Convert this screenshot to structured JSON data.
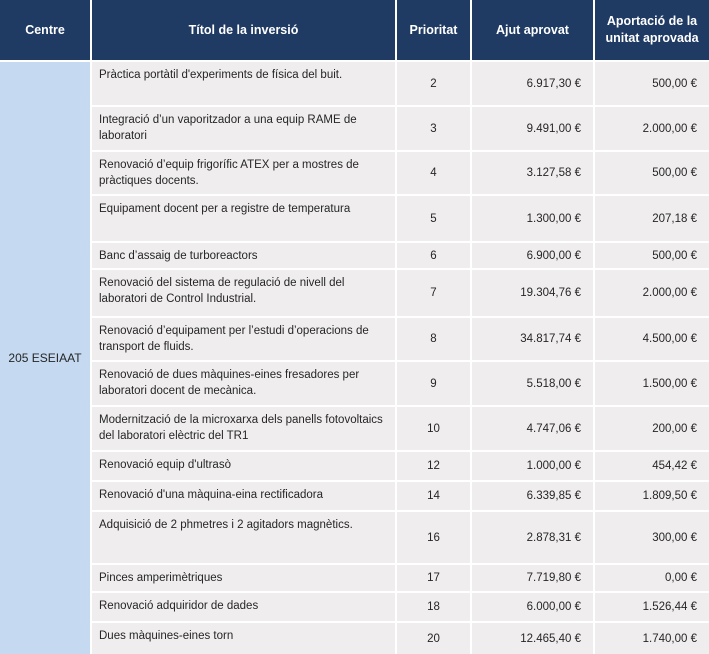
{
  "table": {
    "headers": {
      "centre": "Centre",
      "title": "Títol de la inversió",
      "priority": "Prioritat",
      "grant": "Ajut aprovat",
      "contribution": "Aportació de la unitat aprovada"
    },
    "centre_label": "205 ESEIAAT",
    "rows": [
      {
        "title": "Pràctica portàtil d'experiments de física del buit.",
        "priority": "2",
        "grant": "6.917,30 €",
        "contribution": "500,00 €"
      },
      {
        "title": "Integració d’un vaporitzador a una equip RAME de laboratori",
        "priority": "3",
        "grant": "9.491,00 €",
        "contribution": "2.000,00 €"
      },
      {
        "title": "Renovació d’equip frigorífic ATEX per a mostres de pràctiques docents.",
        "priority": "4",
        "grant": "3.127,58 €",
        "contribution": "500,00 €"
      },
      {
        "title": "Equipament docent per a registre de temperatura",
        "priority": "5",
        "grant": "1.300,00 €",
        "contribution": "207,18 €"
      },
      {
        "title": "Banc d’assaig de turboreactors",
        "priority": "6",
        "grant": "6.900,00 €",
        "contribution": "500,00 €"
      },
      {
        "title": "Renovació del sistema de regulació de nivell del laboratori de Control Industrial.",
        "priority": "7",
        "grant": "19.304,76 €",
        "contribution": "2.000,00 €"
      },
      {
        "title": "Renovació d’equipament per l’estudi d’operacions de transport de fluids.",
        "priority": "8",
        "grant": "34.817,74 €",
        "contribution": "4.500,00 €"
      },
      {
        "title": "Renovació de dues màquines-eines fresadores per laboratori docent de mecànica.",
        "priority": "9",
        "grant": "5.518,00 €",
        "contribution": "1.500,00 €"
      },
      {
        "title": "Modernització de la microxarxa dels panells fotovoltaics del laboratori elèctric del TR1",
        "priority": "10",
        "grant": "4.747,06 €",
        "contribution": "200,00 €"
      },
      {
        "title": "Renovació equip d'ultrasò",
        "priority": "12",
        "grant": "1.000,00 €",
        "contribution": "454,42 €"
      },
      {
        "title": "Renovació d'una màquina-eina rectificadora",
        "priority": "14",
        "grant": "6.339,85 €",
        "contribution": "1.809,50 €"
      },
      {
        "title": "Adquisició de 2 phmetres i 2 agitadors magnètics.",
        "priority": "16",
        "grant": "2.878,31 €",
        "contribution": "300,00 €"
      },
      {
        "title": "Pinces amperimètriques",
        "priority": "17",
        "grant": "7.719,80 €",
        "contribution": "0,00 €"
      },
      {
        "title": "Renovació adquiridor de dades",
        "priority": "18",
        "grant": "6.000,00 €",
        "contribution": "1.526,44 €"
      },
      {
        "title": "Dues màquines-eines torn",
        "priority": "20",
        "grant": "12.465,40 €",
        "contribution": "1.740,00 €"
      }
    ]
  },
  "colors": {
    "header_bg": "#1f3a63",
    "centre_bg": "#c5d9f1",
    "row_bg": "#efedee"
  }
}
